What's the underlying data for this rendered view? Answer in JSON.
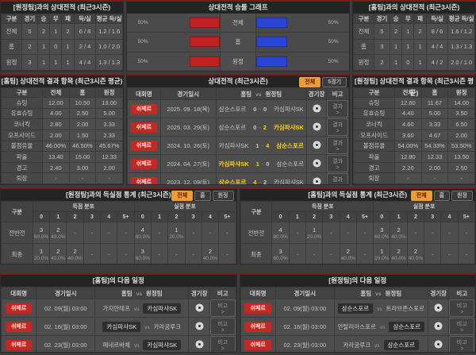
{
  "accent_colors": {
    "panel_top_line": "#7d1a1a",
    "active_tab": "#ed9c3a",
    "win_text": "#ffd400",
    "home_bar": "#c12121",
    "away_bar": "#2b46d6",
    "league_badge": "#c42823"
  },
  "match_headers": {
    "league": "대회명",
    "date": "경기일시",
    "home": "홈팀",
    "vs": "vs",
    "away": "원정팀",
    "venue": "경기장",
    "note": "비고"
  },
  "venue_icon": "stadium-ball-icon",
  "h2h_away": {
    "title": "[원정팀]과의 상대전적 (최근3시즌)",
    "headers": [
      "구분",
      "경기",
      "승",
      "무",
      "패",
      "득/실",
      "평균 득/실"
    ],
    "rows": [
      [
        "전체",
        "5",
        "2",
        "1",
        "2",
        "6 / 8",
        "1.2 / 1.6"
      ],
      [
        "홈",
        "2",
        "1",
        "0",
        "1",
        "2 / 4",
        "1.0 / 2.0"
      ],
      [
        "원정",
        "3",
        "1",
        "1",
        "1",
        "4 / 4",
        "1.3 / 1.3"
      ]
    ]
  },
  "winrate_graph": {
    "title": "상대전적 승률 그래프",
    "rows": [
      {
        "label": "전체",
        "left_pct": "50%",
        "right_pct": "50%",
        "left_val": 50,
        "right_val": 50
      },
      {
        "label": "홈",
        "left_pct": "50%",
        "right_pct": "50%",
        "left_val": 50,
        "right_val": 50
      },
      {
        "label": "원정",
        "left_pct": "50%",
        "right_pct": "50%",
        "left_val": 50,
        "right_val": 50
      }
    ]
  },
  "h2h_home": {
    "title": "[홈팀]과의 상대전적 (최근3시즌)",
    "headers": [
      "구분",
      "경기",
      "승",
      "무",
      "패",
      "득/실",
      "평균 득/실"
    ],
    "rows": [
      [
        "전체",
        "5",
        "2",
        "1",
        "2",
        "8 / 6",
        "1.6 / 1.2"
      ],
      [
        "홈",
        "3",
        "1",
        "1",
        "1",
        "4 / 4",
        "1.3 / 1.3"
      ],
      [
        "원정",
        "2",
        "1",
        "0",
        "1",
        "4 / 2",
        "2.0 / 1.0"
      ]
    ]
  },
  "stats_home": {
    "title": "[홈팀] 상대전적 결과 항목 (최근3시즌 평균)",
    "headers": [
      "구분",
      "전체",
      "홈",
      "원정"
    ],
    "rows": [
      [
        "슈팅",
        "12.00",
        "10.50",
        "13.00"
      ],
      [
        "유효슈팅",
        "4.00",
        "2.50",
        "5.00"
      ],
      [
        "코너킥",
        "2.80",
        "2.00",
        "3.33"
      ],
      [
        "오프사이드",
        "2.00",
        "1.50",
        "2.33"
      ],
      [
        "볼점유율",
        "46.00%",
        "46.50%",
        "45.67%"
      ],
      [
        "파울",
        "13.40",
        "15.00",
        "12.33"
      ],
      [
        "경고",
        "2.40",
        "3.00",
        "2.00"
      ],
      [
        "퇴장",
        "-",
        "-",
        "-"
      ]
    ]
  },
  "h2h_results": {
    "title": "상대전적 (최근3시즌)",
    "tabs": [
      {
        "label": "전체",
        "active": true
      },
      {
        "label": "5경기",
        "active": false
      }
    ],
    "note_label": "결과 >",
    "rows": [
      {
        "league": "쉬페르",
        "date": "2025. 09. 18(목)",
        "home": "삼순스포르",
        "home_score": "0",
        "away_score": "0",
        "away": "카심파샤SK",
        "winner": ""
      },
      {
        "league": "쉬페르",
        "date": "2025. 03. 29(토)",
        "home": "삼순스포르",
        "home_score": "0",
        "away_score": "2",
        "away": "카심파샤SK",
        "winner": "away"
      },
      {
        "league": "쉬페르",
        "date": "2024. 10. 26(토)",
        "home": "카심파샤SK",
        "home_score": "1",
        "away_score": "4",
        "away": "삼순스포르",
        "winner": "away"
      },
      {
        "league": "쉬페르",
        "date": "2024. 04. 27(토)",
        "home": "카심파샤SK",
        "home_score": "1",
        "away_score": "0",
        "away": "삼순스포르",
        "winner": "home"
      },
      {
        "league": "쉬페르",
        "date": "2023. 12. 09(토)",
        "home": "삼순스포르",
        "home_score": "4",
        "away_score": "2",
        "away": "카심파샤SK",
        "winner": "home"
      }
    ]
  },
  "stats_away": {
    "title": "[원정팀] 상대전적 결과 항목 (최근3시즌 평균)",
    "headers": [
      "구분",
      "전체",
      "홈",
      "원정"
    ],
    "rows": [
      [
        "슈팅",
        "12.60",
        "11.67",
        "14.00"
      ],
      [
        "유효슈팅",
        "4.40",
        "5.00",
        "3.50"
      ],
      [
        "코너킥",
        "4.60",
        "3.33",
        "6.50"
      ],
      [
        "오프사이드",
        "3.60",
        "4.67",
        "2.00"
      ],
      [
        "볼점유율",
        "54.00%",
        "54.33%",
        "53.50%"
      ],
      [
        "파울",
        "12.80",
        "12.33",
        "13.50"
      ],
      [
        "경고",
        "2.20",
        "2.00",
        "2.50"
      ],
      [
        "퇴장",
        "-",
        "-",
        "-"
      ]
    ]
  },
  "goals_left": {
    "title": "[원정팀]과의 득실점 통계 (최근3시즌)",
    "tabs": [
      {
        "label": "전체",
        "active": true
      },
      {
        "label": "홈",
        "active": false
      },
      {
        "label": "원정",
        "active": false
      }
    ],
    "col_label": "구분",
    "scored_label": "득점 분포",
    "conceded_label": "실점 분포",
    "bins": [
      "0",
      "1",
      "2",
      "3",
      "4",
      "5+"
    ],
    "rows": [
      {
        "label": "전반전",
        "scored": [
          [
            "3",
            "60.0%"
          ],
          [
            "2",
            "40.0%"
          ],
          null,
          null,
          null,
          null
        ],
        "conceded": [
          [
            "4",
            "80.0%"
          ],
          null,
          [
            "1",
            "20.0%"
          ],
          null,
          null,
          null
        ]
      },
      {
        "label": "최종",
        "scored": [
          [
            "1",
            "20.0%"
          ],
          [
            "2",
            "40.0%"
          ],
          [
            "2",
            "40.0%"
          ],
          null,
          null,
          null
        ],
        "conceded": [
          [
            "3",
            "60.0%"
          ],
          null,
          null,
          null,
          [
            "2",
            "40.0%"
          ],
          null
        ]
      }
    ]
  },
  "goals_right": {
    "title": "[홈팀]과의 득실점 통계 (최근3시즌)",
    "tabs": [
      {
        "label": "전체",
        "active": true
      },
      {
        "label": "홈",
        "active": false
      },
      {
        "label": "원정",
        "active": false
      }
    ],
    "col_label": "구분",
    "scored_label": "득점 분포",
    "conceded_label": "실점 분포",
    "bins": [
      "0",
      "1",
      "2",
      "3",
      "4",
      "5+"
    ],
    "rows": [
      {
        "label": "전반전",
        "scored": [
          [
            "4",
            "80.0%"
          ],
          null,
          [
            "1",
            "20.0%"
          ],
          null,
          null,
          null
        ],
        "conceded": [
          [
            "3",
            "60.0%"
          ],
          [
            "2",
            "40.0%"
          ],
          null,
          null,
          null,
          null
        ]
      },
      {
        "label": "최종",
        "scored": [
          [
            "3",
            "60.0%"
          ],
          null,
          null,
          null,
          [
            "2",
            "40.0%"
          ],
          null
        ],
        "conceded": [
          [
            "1",
            "20.0%"
          ],
          [
            "2",
            "40.0%"
          ],
          [
            "2",
            "40.0%"
          ],
          null,
          null,
          null
        ]
      }
    ]
  },
  "schedule_home": {
    "title": "[홈팀]의 다음 일정",
    "note_label": "비고 >",
    "rows": [
      {
        "league": "쉬페르",
        "date": "02. 09(월) 03:00",
        "home": "가지안테프",
        "away": "카심파샤SK",
        "highlight": "away"
      },
      {
        "league": "쉬페르",
        "date": "02. 16(월) 03:00",
        "home": "카심파샤SK",
        "away": "카라굼루크",
        "highlight": "home"
      },
      {
        "league": "쉬페르",
        "date": "02. 23(월) 03:00",
        "home": "페네르바체",
        "away": "카심파샤SK",
        "highlight": "away"
      }
    ]
  },
  "schedule_away": {
    "title": "[원정팀]의 다음 일정",
    "note_label": "비고 >",
    "rows": [
      {
        "league": "쉬페르",
        "date": "02. 09(월) 03:00",
        "home": "삼순스포르",
        "away": "트라브존스포르",
        "highlight": "home"
      },
      {
        "league": "쉬페르",
        "date": "02. 16(월) 03:00",
        "home": "안탈리아스포르",
        "away": "삼순스포르",
        "highlight": "away"
      },
      {
        "league": "쉬페르",
        "date": "02. 23(월) 03:00",
        "home": "카라굼루크",
        "away": "삼순스포르",
        "highlight": "away"
      }
    ]
  }
}
